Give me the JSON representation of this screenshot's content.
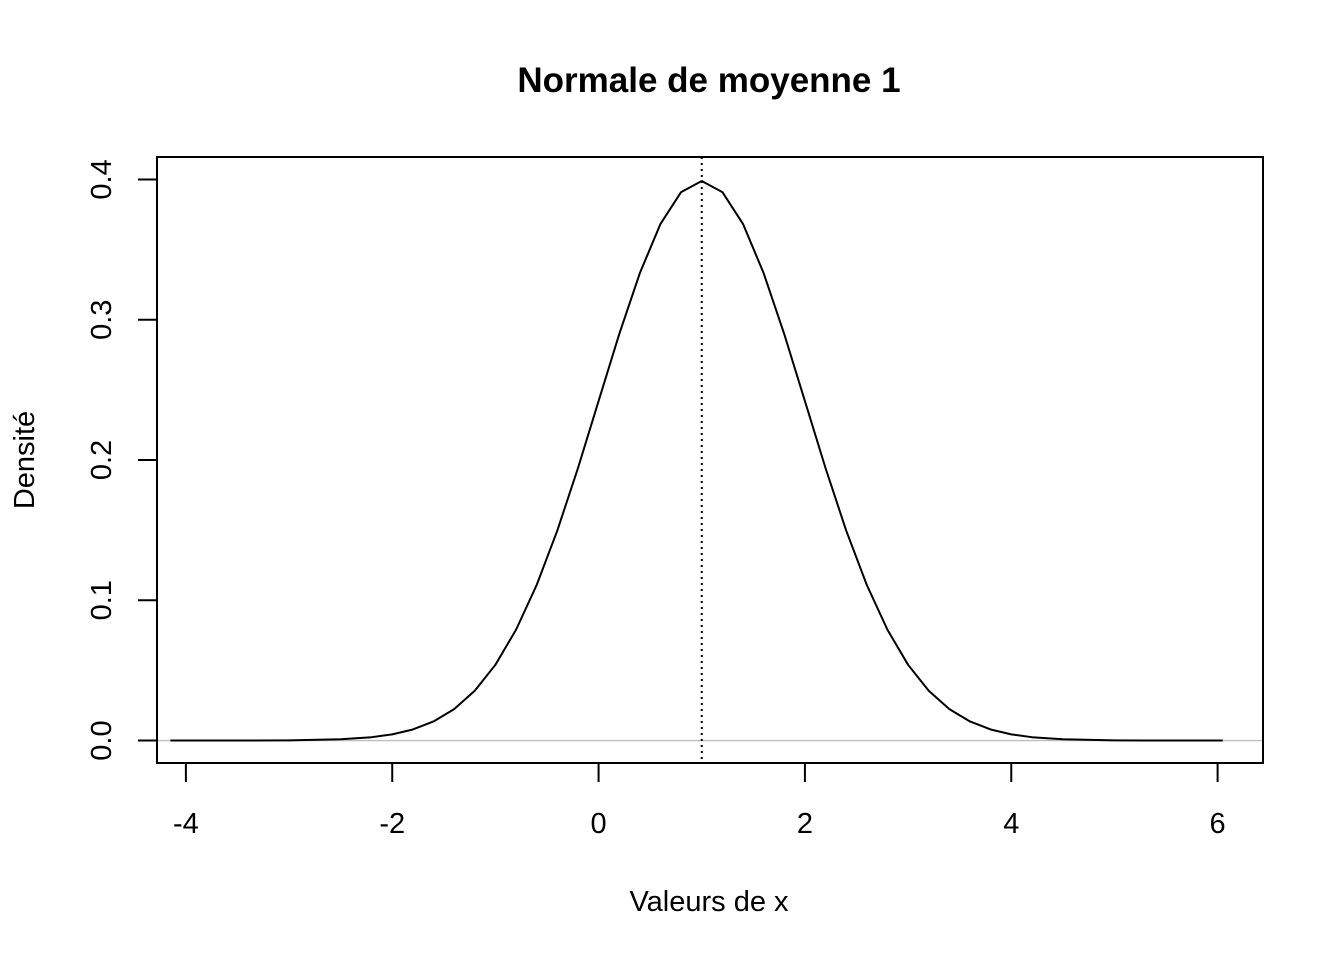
{
  "chart_data": {
    "type": "line",
    "title": "Normale de moyenne 1",
    "xlabel": "Valeurs de x",
    "ylabel": "Densité",
    "xlim": [
      -4.28,
      6.44
    ],
    "ylim": [
      -0.016,
      0.416
    ],
    "x_ticks": [
      -4,
      -2,
      0,
      2,
      4,
      6
    ],
    "x_tick_labels": [
      "-4",
      "-2",
      "0",
      "2",
      "4",
      "6"
    ],
    "y_ticks": [
      0.0,
      0.1,
      0.2,
      0.3,
      0.4
    ],
    "y_tick_labels": [
      "0.0",
      "0.1",
      "0.2",
      "0.3",
      "0.4"
    ],
    "grid": false,
    "legend": "none",
    "series": [
      {
        "line_color": "#000000",
        "line_style": "solid",
        "x": [
          -4.15,
          -3.5,
          -3.0,
          -2.5,
          -2.2,
          -2.0,
          -1.8,
          -1.6,
          -1.4,
          -1.2,
          -1.0,
          -0.8,
          -0.6,
          -0.4,
          -0.2,
          0.0,
          0.2,
          0.4,
          0.6,
          0.8,
          1.0,
          1.2,
          1.4,
          1.6,
          1.8,
          2.0,
          2.2,
          2.4,
          2.6,
          2.8,
          3.0,
          3.2,
          3.4,
          3.6,
          3.8,
          4.0,
          4.2,
          4.5,
          5.0,
          5.5,
          6.05
        ],
        "y": [
          0.0,
          0.0,
          0.0001,
          0.0009,
          0.0024,
          0.0044,
          0.0079,
          0.0136,
          0.0224,
          0.0355,
          0.054,
          0.079,
          0.1109,
          0.1497,
          0.1942,
          0.242,
          0.2897,
          0.3332,
          0.3683,
          0.391,
          0.3989,
          0.391,
          0.3683,
          0.3332,
          0.2897,
          0.242,
          0.1942,
          0.1497,
          0.1109,
          0.079,
          0.054,
          0.0355,
          0.0224,
          0.0136,
          0.0079,
          0.0044,
          0.0024,
          0.0009,
          0.0001,
          0.0,
          0.0
        ]
      }
    ],
    "reference_lines": [
      {
        "orientation": "horizontal",
        "value": 0,
        "color": "#bebebe",
        "style": "solid"
      },
      {
        "orientation": "vertical",
        "value": 1,
        "color": "#000000",
        "style": "dotted"
      }
    ]
  }
}
